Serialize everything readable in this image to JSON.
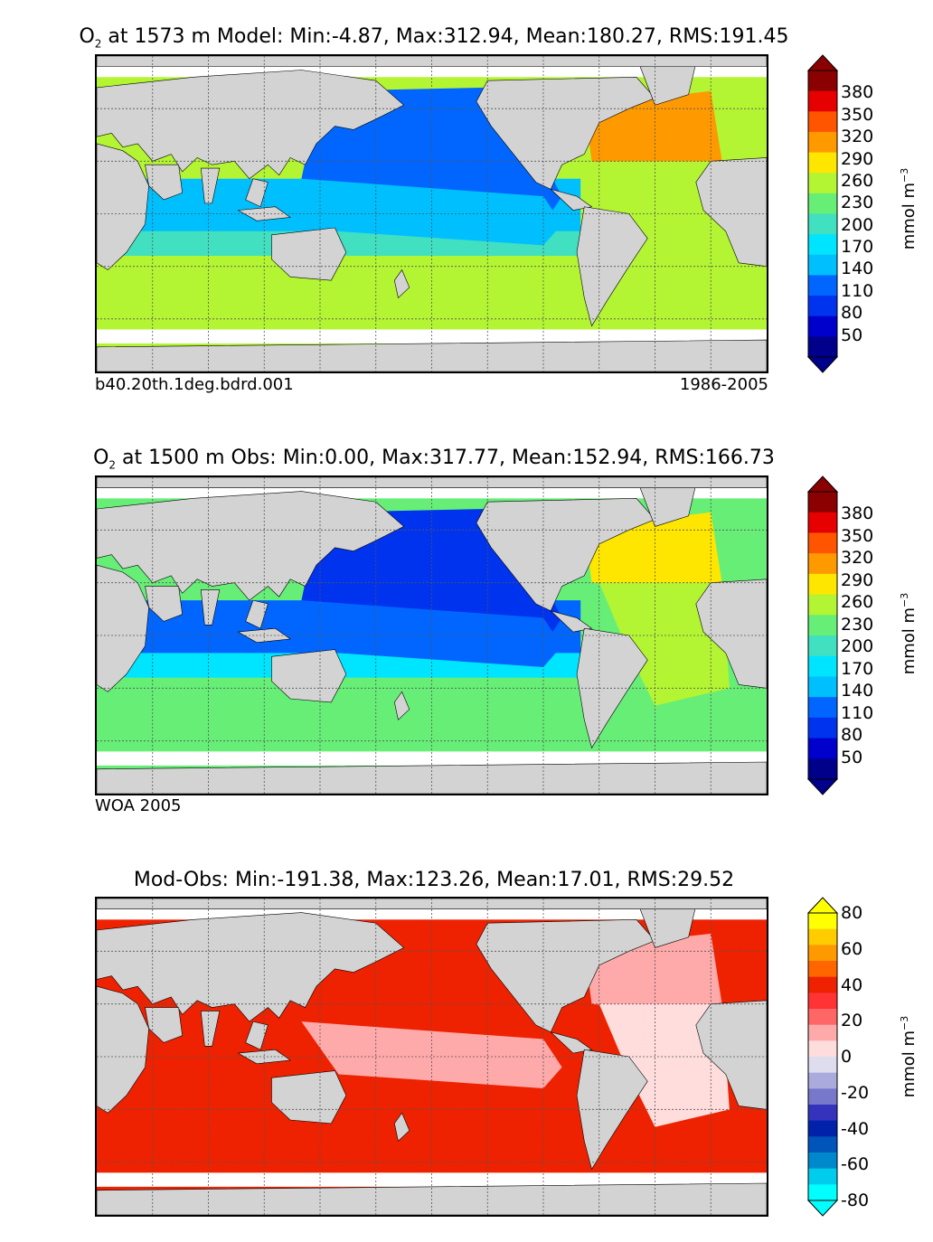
{
  "chart_data": [
    {
      "type": "heatmap",
      "title_species": "O",
      "title_subscript": "2",
      "title_rest": " at 1573 m Model: Min:-4.87, Max:312.94, Mean:180.27, RMS:191.45",
      "footer_left": "b40.20th.1deg.bdrd.001",
      "footer_right": "1986-2005",
      "colorbar_ticks": [
        "380",
        "350",
        "320",
        "290",
        "260",
        "230",
        "200",
        "170",
        "140",
        "110",
        "80",
        "50"
      ],
      "colorbar_levels": [
        20,
        50,
        80,
        110,
        140,
        170,
        200,
        230,
        260,
        290,
        320,
        350,
        380,
        410
      ],
      "colorbar_colors": [
        "#00008b",
        "#0000cd",
        "#0033ee",
        "#0066ff",
        "#00bfff",
        "#00e5ff",
        "#40e0c0",
        "#66ee77",
        "#b3f533",
        "#ffe600",
        "#ff9900",
        "#ff5500",
        "#e60000",
        "#8b0000"
      ],
      "colorbar_label": "mmol m",
      "colorbar_label_sup": "−3",
      "field": {
        "pacific_north": 80,
        "pacific_equatorial": 110,
        "southern_ocean": 230,
        "north_atlantic": 290,
        "atlantic_subtropical": 230,
        "indian": 110
      }
    },
    {
      "type": "heatmap",
      "title_species": "O",
      "title_subscript": "2",
      "title_rest": " at 1500 m Obs: Min:0.00, Max:317.77, Mean:152.94, RMS:166.73",
      "footer_left": "WOA 2005",
      "footer_right": "",
      "colorbar_ticks": [
        "380",
        "350",
        "320",
        "290",
        "260",
        "230",
        "200",
        "170",
        "140",
        "110",
        "80",
        "50"
      ],
      "colorbar_levels": [
        20,
        50,
        80,
        110,
        140,
        170,
        200,
        230,
        260,
        290,
        320,
        350,
        380,
        410
      ],
      "colorbar_colors": [
        "#00008b",
        "#0000cd",
        "#0033ee",
        "#0066ff",
        "#00bfff",
        "#00e5ff",
        "#40e0c0",
        "#66ee77",
        "#b3f533",
        "#ffe600",
        "#ff9900",
        "#ff5500",
        "#e60000",
        "#8b0000"
      ],
      "colorbar_label": "mmol m",
      "colorbar_label_sup": "−3",
      "field": {
        "pacific_north": 50,
        "pacific_equatorial": 80,
        "southern_ocean": 200,
        "north_atlantic": 260,
        "atlantic_subtropical": 230,
        "indian": 80
      }
    },
    {
      "type": "heatmap",
      "title_species": "",
      "title_subscript": "",
      "title_rest": "Mod-Obs: Min:-191.38, Max:123.26, Mean:17.01, RMS:29.52",
      "footer_left": "",
      "footer_right": "",
      "colorbar_ticks": [
        "80",
        "60",
        "40",
        "20",
        "0",
        "-20",
        "-40",
        "-60",
        "-80"
      ],
      "colorbar_levels": [
        -80,
        -70,
        -60,
        -50,
        -40,
        -30,
        -20,
        -10,
        0,
        10,
        20,
        30,
        40,
        50,
        60,
        70,
        80
      ],
      "colorbar_colors": [
        "#00ffff",
        "#00ccee",
        "#0088cc",
        "#0055bb",
        "#0022aa",
        "#3333bb",
        "#7777cc",
        "#aaaadd",
        "#ddddee",
        "#ffdddd",
        "#ffaaaa",
        "#ff6666",
        "#ff3333",
        "#ee2200",
        "#ff6600",
        "#ff9900",
        "#ffcc00",
        "#ffff00"
      ],
      "colorbar_label": "mmol m",
      "colorbar_label_sup": "−3",
      "field": {
        "pacific_north": 40,
        "pacific_equatorial": 10,
        "southern_ocean": 40,
        "north_atlantic": 10,
        "atlantic_subtropical": 0,
        "indian": 40
      }
    }
  ]
}
